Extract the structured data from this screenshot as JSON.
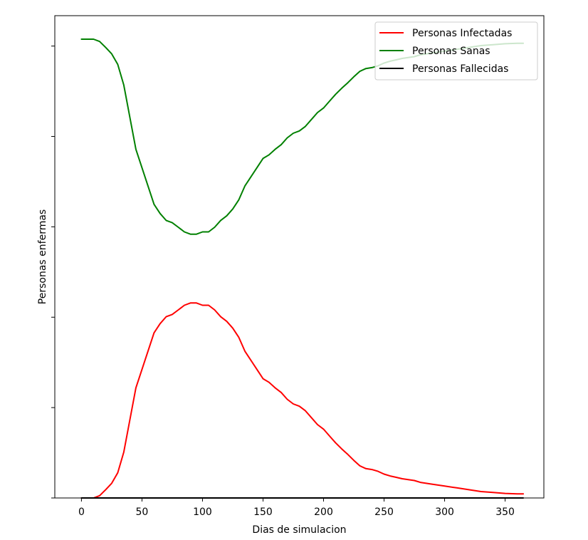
{
  "chart_data": {
    "type": "line",
    "title": "",
    "xlabel": "Dias de simulacion",
    "ylabel": "Personas enfermas",
    "xlim": [
      -22,
      382
    ],
    "ylim": [
      0,
      1
    ],
    "x_ticks": [
      0,
      50,
      100,
      150,
      200,
      250,
      300,
      350
    ],
    "y_ticks": [
      0,
      0.2,
      0.4,
      0.6,
      0.8,
      1.0
    ],
    "y_tick_labels_visible": false,
    "grid": false,
    "legend_position": "upper-right",
    "series": [
      {
        "name": "Personas Infectadas",
        "color": "#ff0000",
        "x": [
          0,
          10,
          15,
          20,
          25,
          30,
          35,
          40,
          45,
          50,
          55,
          60,
          65,
          70,
          75,
          80,
          85,
          90,
          95,
          100,
          105,
          110,
          115,
          120,
          125,
          130,
          135,
          140,
          145,
          150,
          155,
          160,
          165,
          170,
          175,
          180,
          185,
          190,
          195,
          200,
          205,
          210,
          215,
          220,
          225,
          230,
          235,
          240,
          245,
          250,
          255,
          260,
          265,
          270,
          275,
          280,
          290,
          300,
          310,
          320,
          330,
          340,
          350,
          360,
          365
        ],
        "y": [
          0,
          0,
          0.005,
          0.018,
          0.032,
          0.055,
          0.1,
          0.17,
          0.24,
          0.28,
          0.32,
          0.36,
          0.38,
          0.395,
          0.4,
          0.41,
          0.42,
          0.425,
          0.425,
          0.42,
          0.42,
          0.41,
          0.395,
          0.385,
          0.37,
          0.35,
          0.32,
          0.3,
          0.28,
          0.26,
          0.252,
          0.24,
          0.23,
          0.215,
          0.205,
          0.2,
          0.19,
          0.175,
          0.16,
          0.15,
          0.135,
          0.12,
          0.107,
          0.095,
          0.082,
          0.07,
          0.064,
          0.062,
          0.058,
          0.052,
          0.048,
          0.045,
          0.042,
          0.04,
          0.038,
          0.034,
          0.03,
          0.026,
          0.022,
          0.018,
          0.014,
          0.012,
          0.01,
          0.009,
          0.009
        ]
      },
      {
        "name": "Personas Sanas",
        "color": "#008000",
        "x": [
          0,
          10,
          15,
          20,
          25,
          30,
          35,
          40,
          45,
          50,
          55,
          60,
          65,
          70,
          75,
          80,
          85,
          90,
          95,
          100,
          105,
          110,
          115,
          120,
          125,
          130,
          135,
          140,
          145,
          150,
          155,
          160,
          165,
          170,
          175,
          180,
          185,
          190,
          195,
          200,
          205,
          210,
          215,
          220,
          225,
          230,
          235,
          240,
          245,
          250,
          255,
          260,
          265,
          270,
          275,
          280,
          290,
          300,
          310,
          320,
          330,
          340,
          350,
          360,
          365
        ],
        "y": [
          1.0,
          1.0,
          0.995,
          0.982,
          0.968,
          0.945,
          0.9,
          0.83,
          0.76,
          0.72,
          0.68,
          0.64,
          0.62,
          0.605,
          0.6,
          0.59,
          0.58,
          0.575,
          0.575,
          0.58,
          0.58,
          0.59,
          0.605,
          0.615,
          0.63,
          0.65,
          0.68,
          0.7,
          0.72,
          0.74,
          0.748,
          0.76,
          0.77,
          0.785,
          0.795,
          0.8,
          0.81,
          0.825,
          0.84,
          0.85,
          0.865,
          0.88,
          0.893,
          0.905,
          0.918,
          0.93,
          0.936,
          0.938,
          0.942,
          0.948,
          0.952,
          0.955,
          0.958,
          0.96,
          0.962,
          0.966,
          0.97,
          0.974,
          0.978,
          0.982,
          0.986,
          0.988,
          0.99,
          0.991,
          0.991
        ]
      },
      {
        "name": "Personas Fallecidas",
        "color": "#000000",
        "x": [
          0,
          365
        ],
        "y": [
          0,
          0
        ]
      }
    ]
  }
}
